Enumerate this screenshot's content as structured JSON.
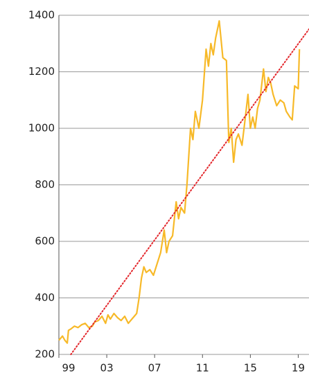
{
  "chart_data": {
    "type": "line",
    "xlim": [
      1999,
      2019.9
    ],
    "xticks": [
      {
        "value": 1999,
        "label": "99"
      },
      {
        "value": 2003,
        "label": "03"
      },
      {
        "value": 2007,
        "label": "07"
      },
      {
        "value": 2011,
        "label": "11"
      },
      {
        "value": 2015,
        "label": "15"
      },
      {
        "value": 2019,
        "label": "19"
      }
    ],
    "ylim": [
      200,
      1400
    ],
    "yticks": [
      200,
      400,
      600,
      800,
      1000,
      1200,
      1400
    ],
    "grid": true,
    "series": [
      {
        "color": "#f7b928",
        "style": "solid",
        "x": [
          1999.0,
          1999.3,
          1999.5,
          1999.7,
          1999.8,
          2000.0,
          2000.3,
          2000.6,
          2000.9,
          2001.2,
          2001.5,
          2001.8,
          2002.0,
          2002.3,
          2002.6,
          2002.9,
          2003.1,
          2003.3,
          2003.6,
          2003.9,
          2004.2,
          2004.5,
          2004.8,
          2005.0,
          2005.3,
          2005.5,
          2005.7,
          2005.9,
          2006.1,
          2006.3,
          2006.6,
          2006.9,
          2007.2,
          2007.5,
          2007.8,
          2008.0,
          2008.2,
          2008.5,
          2008.8,
          2009.0,
          2009.2,
          2009.5,
          2009.7,
          2010.0,
          2010.2,
          2010.4,
          2010.7,
          2011.0,
          2011.3,
          2011.5,
          2011.7,
          2011.9,
          2012.1,
          2012.4,
          2012.7,
          2013.0,
          2013.2,
          2013.4,
          2013.6,
          2013.8,
          2014.0,
          2014.3,
          2014.5,
          2014.8,
          2015.0,
          2015.2,
          2015.4,
          2015.6,
          2015.8,
          2016.1,
          2016.3,
          2016.5,
          2016.7,
          2016.9,
          2017.2,
          2017.5,
          2017.8,
          2018.0,
          2018.3,
          2018.5,
          2018.7,
          2019.0,
          2019.1
        ],
        "values": [
          250,
          265,
          250,
          240,
          285,
          290,
          300,
          295,
          305,
          310,
          295,
          300,
          315,
          320,
          335,
          310,
          340,
          325,
          345,
          330,
          320,
          335,
          310,
          320,
          335,
          345,
          400,
          470,
          510,
          490,
          500,
          480,
          520,
          560,
          640,
          560,
          600,
          620,
          740,
          680,
          720,
          700,
          800,
          1000,
          960,
          1060,
          1000,
          1100,
          1280,
          1220,
          1300,
          1260,
          1320,
          1380,
          1250,
          1240,
          950,
          1000,
          880,
          960,
          980,
          940,
          1010,
          1120,
          1000,
          1040,
          1000,
          1070,
          1100,
          1210,
          1130,
          1180,
          1160,
          1120,
          1080,
          1100,
          1090,
          1060,
          1040,
          1030,
          1150,
          1140,
          1280
        ]
      },
      {
        "color": "#e3262b",
        "style": "dotted",
        "x": [
          2000,
          2019.9
        ],
        "values": [
          200,
          1351
        ]
      }
    ]
  }
}
